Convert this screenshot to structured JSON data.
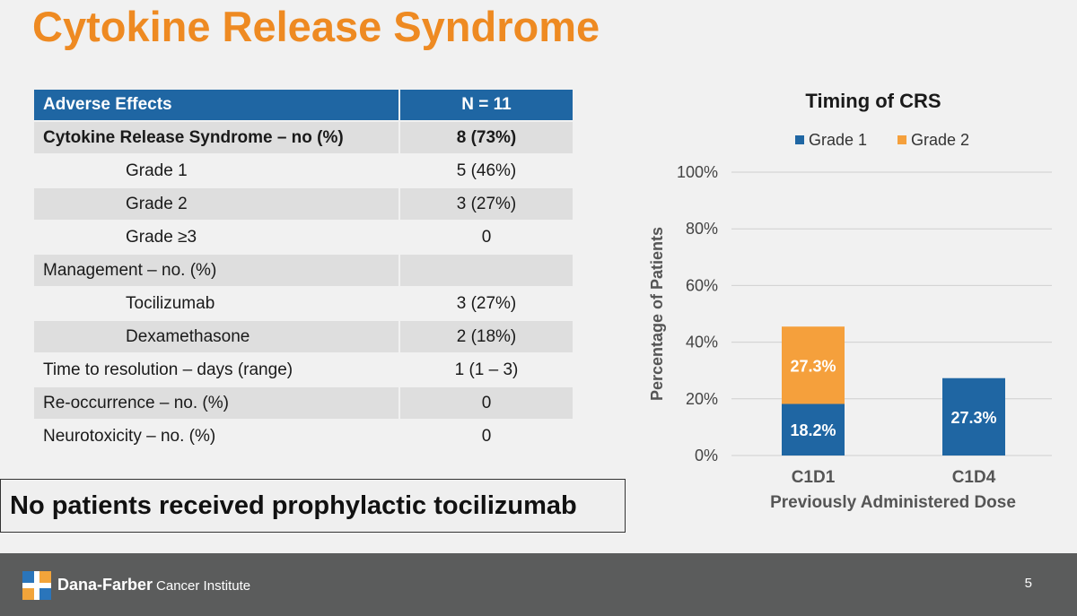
{
  "slide": {
    "title": "Cytokine Release Syndrome",
    "callout": "No patients received prophylactic tocilizumab",
    "page_number": "5"
  },
  "table": {
    "headers": [
      "Adverse Effects",
      "N = 11"
    ],
    "rows": [
      {
        "label": "Cytokine Release Syndrome – no (%)",
        "value": "8 (73%)"
      },
      {
        "label": "Grade 1",
        "value": "5 (46%)"
      },
      {
        "label": "Grade 2",
        "value": "3 (27%)"
      },
      {
        "label": "Grade ≥3",
        "value": "0"
      },
      {
        "label": "Management – no. (%)",
        "value": ""
      },
      {
        "label": "Tocilizumab",
        "value": "3 (27%)"
      },
      {
        "label": "Dexamethasone",
        "value": "2 (18%)"
      },
      {
        "label": "Time to resolution – days (range)",
        "value": "1 (1 – 3)"
      },
      {
        "label": "Re-occurrence – no. (%)",
        "value": "0"
      },
      {
        "label": "Neurotoxicity – no. (%)",
        "value": "0"
      }
    ]
  },
  "footer": {
    "brand_bold": "Dana-Farber",
    "brand_rest": "Cancer Institute"
  },
  "colors": {
    "title": "#ee8a22",
    "header": "#1f66a3",
    "grade1": "#1f66a3",
    "grade2": "#f5a03c",
    "footer": "#5b5c5c"
  },
  "chart_data": {
    "type": "bar",
    "stacked": true,
    "title": "Timing of CRS",
    "xlabel": "Previously Administered Dose",
    "ylabel": "Percentage of Patients",
    "categories": [
      "C1D1",
      "C1D4"
    ],
    "series": [
      {
        "name": "Grade 1",
        "values": [
          18.2,
          27.3
        ],
        "labels": [
          "18.2%",
          "27.3%"
        ]
      },
      {
        "name": "Grade 2",
        "values": [
          27.3,
          0
        ],
        "labels": [
          "27.3%",
          ""
        ]
      }
    ],
    "ylim": [
      0,
      100
    ],
    "yticks": [
      "0%",
      "20%",
      "40%",
      "60%",
      "80%",
      "100%"
    ],
    "ytick_values": [
      0,
      20,
      40,
      60,
      80,
      100
    ],
    "grid": true,
    "legend_position": "top"
  }
}
